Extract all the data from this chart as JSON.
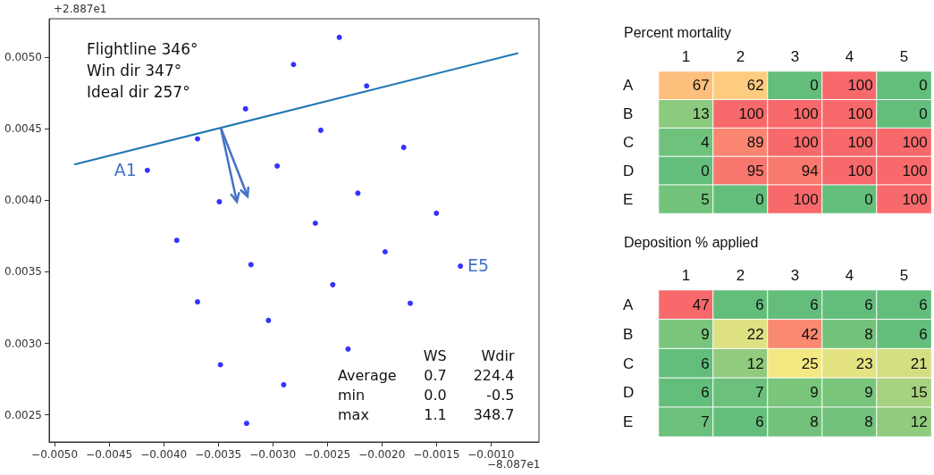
{
  "chart_data": [
    {
      "type": "scatter",
      "marker": "circle",
      "grid": false,
      "xlim": [
        -0.00505,
        -0.00056
      ],
      "ylim": [
        0.00231,
        0.00527
      ],
      "xticks": [
        {
          "value": -0.005,
          "label": "−0.0050"
        },
        {
          "value": -0.0045,
          "label": "−0.0045"
        },
        {
          "value": -0.004,
          "label": "−0.0040"
        },
        {
          "value": -0.0035,
          "label": "−0.0035"
        },
        {
          "value": -0.003,
          "label": "−0.0030"
        },
        {
          "value": -0.0025,
          "label": "−0.0025"
        },
        {
          "value": -0.002,
          "label": "−0.0020"
        },
        {
          "value": -0.0015,
          "label": "−0.0015"
        },
        {
          "value": -0.001,
          "label": "−0.0010"
        }
      ],
      "yticks": [
        {
          "value": 0.0025,
          "label": "0.0025"
        },
        {
          "value": 0.003,
          "label": "0.0030"
        },
        {
          "value": 0.0035,
          "label": "0.0035"
        },
        {
          "value": 0.004,
          "label": "0.0040"
        },
        {
          "value": 0.0045,
          "label": "0.0045"
        },
        {
          "value": 0.005,
          "label": "0.0050"
        }
      ],
      "series": [
        {
          "type": "scatter",
          "color": "#0000ff",
          "x": [
            -0.00415,
            -0.00369,
            -0.00325,
            -0.00349,
            -0.00388,
            -0.00296,
            -0.00281,
            -0.00239,
            -0.00214,
            -0.00256,
            -0.0018,
            -0.00222,
            -0.00261,
            -0.0015,
            -0.00197,
            -0.0032,
            -0.00369,
            -0.00304,
            -0.00245,
            -0.00174,
            -0.00128,
            -0.00231,
            -0.00348,
            -0.0029,
            -0.00324
          ],
          "values": [
            0.00421,
            0.00443,
            0.00464,
            0.00399,
            0.00372,
            0.00424,
            0.00495,
            0.00514,
            0.0048,
            0.00449,
            0.00437,
            0.00405,
            0.00384,
            0.00391,
            0.00364,
            0.00355,
            0.00329,
            0.00316,
            0.00341,
            0.00328,
            0.00354,
            0.00296,
            0.00285,
            0.00271,
            0.00244
          ]
        },
        {
          "type": "line",
          "marker": "none",
          "color": "#1f77b4",
          "x": [
            -0.00482,
            -0.00075
          ],
          "values": [
            0.00425,
            0.00503
          ]
        }
      ],
      "annotations": [
        "Flightline 346°",
        "Win dir 347°",
        "Ideal dir 257°",
        {
          "text": "A1",
          "x": -0.00415,
          "y": 0.00421
        },
        {
          "text": "E5",
          "x": -0.00128,
          "y": 0.00354
        },
        "+2.887e1",
        "−8.087e1"
      ]
    },
    {
      "type": "other",
      "data_labels": true,
      "categories": [
        "Average",
        "min",
        "max"
      ],
      "series": [
        {
          "name": "WS",
          "values": [
            0.7,
            0.0,
            1.1
          ],
          "value_labels": [
            "0.7",
            "0.0",
            "1.1"
          ]
        },
        {
          "name": "Wdir",
          "values": [
            224.4,
            -0.5,
            348.7
          ],
          "value_labels": [
            "224.4",
            "-0.5",
            "348.7"
          ]
        }
      ]
    },
    {
      "type": "heatmap",
      "title": "Percent mortality",
      "data_labels": true,
      "categories": [
        "1",
        "2",
        "3",
        "4",
        "5"
      ],
      "y_categories": [
        "A",
        "B",
        "C",
        "D",
        "E"
      ],
      "cells": [
        [
          67,
          62,
          0,
          100,
          0
        ],
        [
          13,
          100,
          100,
          100,
          0
        ],
        [
          4,
          89,
          100,
          100,
          100
        ],
        [
          0,
          95,
          94,
          100,
          100
        ],
        [
          5,
          0,
          100,
          0,
          100
        ]
      ]
    },
    {
      "type": "heatmap",
      "title": "Deposition % applied",
      "data_labels": true,
      "categories": [
        "1",
        "2",
        "3",
        "4",
        "5"
      ],
      "y_categories": [
        "A",
        "B",
        "C",
        "D",
        "E"
      ],
      "cells": [
        [
          47,
          6,
          6,
          6,
          6
        ],
        [
          9,
          22,
          42,
          8,
          6
        ],
        [
          6,
          12,
          25,
          23,
          21
        ],
        [
          6,
          7,
          9,
          9,
          15
        ],
        [
          7,
          6,
          8,
          8,
          12
        ]
      ]
    }
  ]
}
